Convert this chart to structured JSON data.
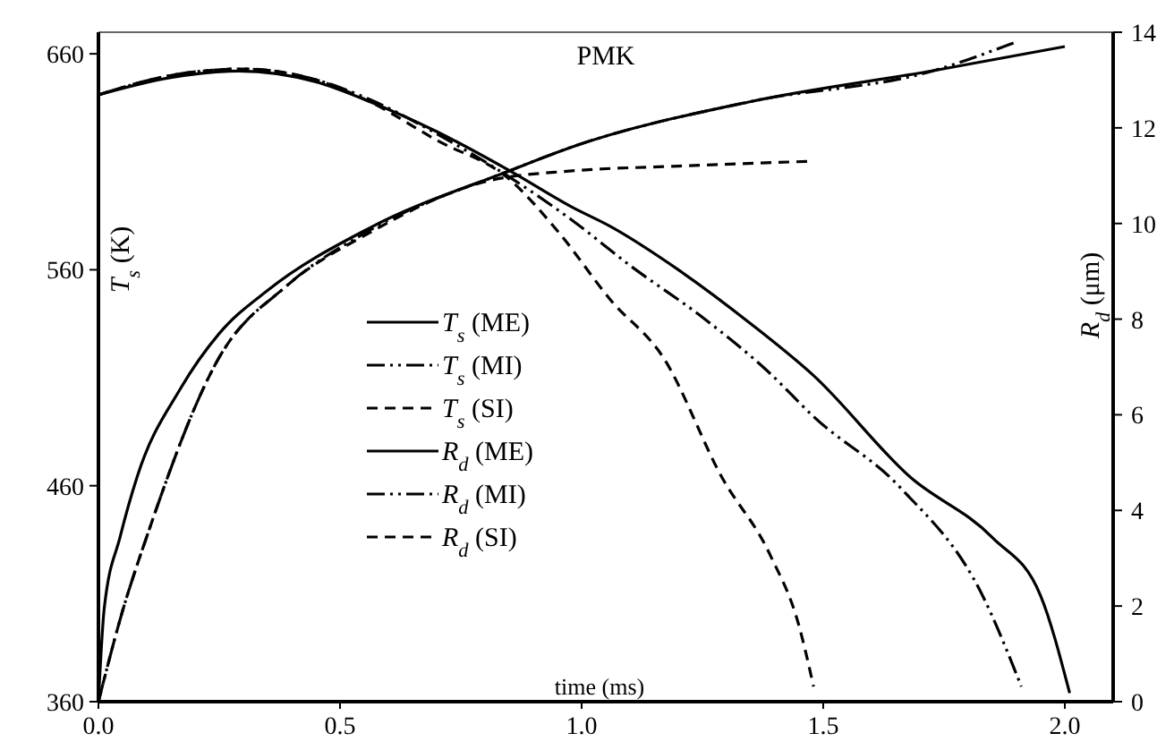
{
  "chart_data": {
    "type": "line",
    "title": "PMK",
    "xlabel": "time (ms)",
    "ylabel": "T$_{s}$ (K)",
    "y2label": "R$_{d}$ (μm)",
    "xlim": [
      0,
      2.1
    ],
    "xticks": [
      {
        "value": 0,
        "label": "0.0"
      },
      {
        "value": 0.5,
        "label": "0.5"
      },
      {
        "value": 1,
        "label": "1.0"
      },
      {
        "value": 1.5,
        "label": "1.5"
      },
      {
        "value": 2,
        "label": "2.0"
      }
    ],
    "ylim": [
      360,
      670
    ],
    "yticks": [
      360,
      460,
      560,
      660
    ],
    "y2lim": [
      0,
      14
    ],
    "y2ticks": [
      0,
      2,
      4,
      6,
      8,
      10,
      12,
      14
    ],
    "grid": false,
    "legend": "center left",
    "marker": "none",
    "series": [
      {
        "name": "T$_{s}$ (ME)",
        "color": "#000000",
        "line_style": "solid",
        "x": [
          0,
          0.15,
          0.29,
          0.45,
          0.56,
          0.7,
          0.85,
          0.98,
          1.06,
          1.2,
          1.35,
          1.48,
          1.68,
          1.85,
          1.95,
          2.01
        ],
        "values": [
          641,
          649,
          652,
          647,
          638,
          624,
          606,
          589,
          580,
          560,
          535,
          511,
          464,
          436,
          409,
          364
        ]
      },
      {
        "name": "T$_{s}$ (MI)",
        "color": "#000000",
        "line_style": "dashdot",
        "x": [
          0,
          0.15,
          0.3,
          0.45,
          0.56,
          0.7,
          0.85,
          0.98,
          1.1,
          1.25,
          1.39,
          1.48,
          1.66,
          1.83,
          1.91
        ],
        "values": [
          641,
          650,
          653,
          648,
          639,
          623,
          603,
          583,
          562,
          538,
          512,
          492,
          459,
          409,
          367
        ]
      },
      {
        "name": "T$_{s}$ (SI)",
        "color": "#000000",
        "line_style": "dashed",
        "x": [
          0,
          0.15,
          0.3,
          0.45,
          0.56,
          0.7,
          0.85,
          0.95,
          1.06,
          1.17,
          1.29,
          1.39,
          1.45,
          1.48
        ],
        "values": [
          641,
          650,
          653,
          648,
          638,
          620,
          602,
          578,
          546,
          519,
          464,
          428,
          395,
          367
        ]
      },
      {
        "name": "R$_{d}$ (ME)",
        "color": "#000000",
        "line_style": "solid",
        "axis": "y2",
        "x": [
          0,
          0.012,
          0.045,
          0.08,
          0.17,
          0.25,
          0.35,
          0.56,
          0.85,
          0.98,
          1.35,
          1.73,
          2.0
        ],
        "values": [
          0,
          1.95,
          3.45,
          4.7,
          6.55,
          7.7,
          8.6,
          9.9,
          11.1,
          11.6,
          12.55,
          13.2,
          13.7
        ]
      },
      {
        "name": "R$_{d}$ (MI)",
        "color": "#000000",
        "line_style": "dashdot",
        "axis": "y2",
        "x": [
          0,
          0.05,
          0.1,
          0.25,
          0.39,
          0.56,
          0.85,
          0.98,
          1.35,
          1.73,
          1.9
        ],
        "values": [
          0,
          1.9,
          3.45,
          7.2,
          8.7,
          9.85,
          11.1,
          11.6,
          12.55,
          13.2,
          13.8
        ]
      },
      {
        "name": "R$_{d}$ (SI)",
        "color": "#000000",
        "line_style": "dashed",
        "axis": "y2",
        "x": [
          0,
          0.05,
          0.1,
          0.25,
          0.39,
          0.56,
          0.81,
          0.98,
          1.2,
          1.47
        ],
        "values": [
          0,
          1.9,
          3.45,
          7.2,
          8.7,
          9.8,
          10.9,
          11.1,
          11.2,
          11.3
        ]
      }
    ]
  }
}
